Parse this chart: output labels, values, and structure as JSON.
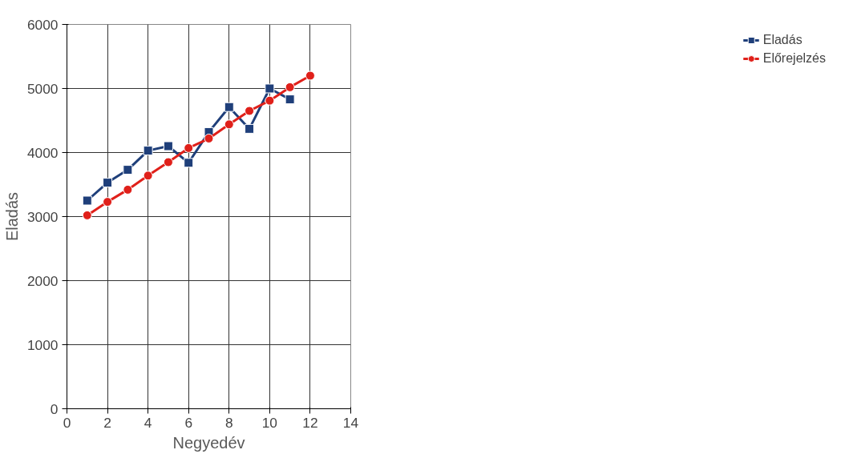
{
  "chart_data": {
    "type": "line",
    "xlabel": "Negyedév",
    "ylabel": "Eladás",
    "xlim": [
      0,
      14
    ],
    "xticks": [
      0,
      2,
      4,
      6,
      8,
      10,
      12,
      14
    ],
    "ylim": [
      0,
      6000
    ],
    "yticks": [
      0,
      1000,
      2000,
      3000,
      4000,
      5000,
      6000
    ],
    "grid": true,
    "legend": "right",
    "series": [
      {
        "name": "Eladás",
        "color": "#1f3f7a",
        "marker": "square",
        "x": [
          1,
          2,
          3,
          4,
          5,
          6,
          7,
          8,
          9,
          10,
          11
        ],
        "values": [
          3250,
          3530,
          3730,
          4030,
          4100,
          3840,
          4320,
          4710,
          4370,
          5000,
          4830
        ]
      },
      {
        "name": "Előrejelzés",
        "color": "#e0201a",
        "marker": "circle",
        "x": [
          1,
          2,
          3,
          4,
          5,
          6,
          7,
          8,
          9,
          10,
          11,
          12
        ],
        "values": [
          3020,
          3230,
          3420,
          3640,
          3850,
          4070,
          4220,
          4440,
          4650,
          4810,
          5020,
          5200
        ]
      }
    ]
  }
}
